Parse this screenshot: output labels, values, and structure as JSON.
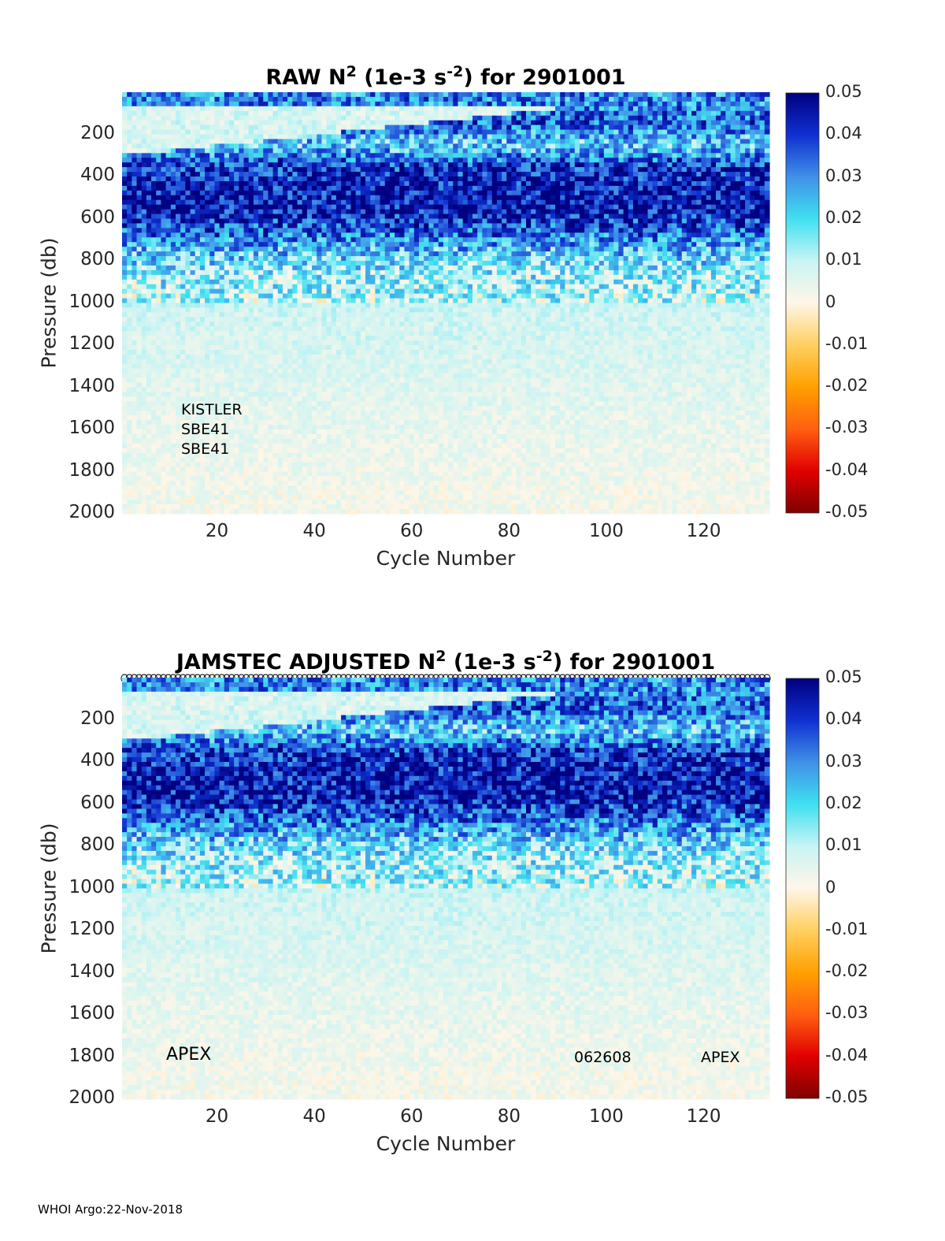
{
  "panels": [
    {
      "id": "raw",
      "title_parts": [
        "RAW N",
        "2",
        " (1e-3 s",
        "-2",
        ") for 2901001"
      ],
      "annotations": [
        "KISTLER",
        "SBE41",
        "SBE41"
      ],
      "bottom_annotations": [],
      "show_profile_markers": false
    },
    {
      "id": "adjusted",
      "title_parts": [
        "JAMSTEC  ADJUSTED N",
        "2",
        " (1e-3 s",
        "-2",
        ") for 2901001"
      ],
      "annotations": [],
      "bottom_annotations": [
        "APEX",
        "062608",
        "APEX"
      ],
      "show_profile_markers": true
    }
  ],
  "footer": "WHOI Argo:22-Nov-2018",
  "chart_data": [
    {
      "type": "heatmap",
      "title": "RAW N2 (1e-3 s-2) for 2901001",
      "xlabel": "Cycle Number",
      "ylabel": "Pressure (db)",
      "xlim": [
        1,
        133
      ],
      "ylim": [
        0,
        2000
      ],
      "y_reversed": true,
      "xticks": [
        20,
        40,
        60,
        80,
        100,
        120
      ],
      "yticks": [
        200,
        400,
        600,
        800,
        1000,
        1200,
        1400,
        1600,
        1800,
        2000
      ],
      "colorbar": {
        "min": -0.05,
        "max": 0.05,
        "ticks": [
          "0.05",
          "0.04",
          "0.03",
          "0.02",
          "0.01",
          "0",
          "-0.01",
          "-0.02",
          "-0.03",
          "-0.04",
          "-0.05"
        ],
        "colors": [
          "#800000",
          "#e00000",
          "#ff6010",
          "#ffa000",
          "#ffd060",
          "#fff6e8",
          "#c8f4f4",
          "#40e0f0",
          "#4090e8",
          "#1030d0",
          "#000080"
        ]
      },
      "profile": [
        {
          "p": 50,
          "v": 0.03
        },
        {
          "p": 150,
          "v": 0.035
        },
        {
          "p": 250,
          "v": 0.02
        },
        {
          "p": 350,
          "v": 0.04
        },
        {
          "p": 450,
          "v": 0.044
        },
        {
          "p": 550,
          "v": 0.045
        },
        {
          "p": 650,
          "v": 0.036
        },
        {
          "p": 750,
          "v": 0.024
        },
        {
          "p": 850,
          "v": 0.014
        },
        {
          "p": 950,
          "v": 0.012
        },
        {
          "p": 1050,
          "v": 0.008
        },
        {
          "p": 1250,
          "v": 0.007
        },
        {
          "p": 1500,
          "v": 0.005
        },
        {
          "p": 1800,
          "v": 0.003
        },
        {
          "p": 2000,
          "v": 0.002
        }
      ]
    },
    {
      "type": "heatmap",
      "title": "JAMSTEC  ADJUSTED N2 (1e-3 s-2) for 2901001",
      "xlabel": "Cycle Number",
      "ylabel": "Pressure (db)",
      "xlim": [
        1,
        133
      ],
      "ylim": [
        0,
        2000
      ],
      "y_reversed": true,
      "xticks": [
        20,
        40,
        60,
        80,
        100,
        120
      ],
      "yticks": [
        200,
        400,
        600,
        800,
        1000,
        1200,
        1400,
        1600,
        1800,
        2000
      ],
      "colorbar": {
        "min": -0.05,
        "max": 0.05,
        "ticks": [
          "0.05",
          "0.04",
          "0.03",
          "0.02",
          "0.01",
          "0",
          "-0.01",
          "-0.02",
          "-0.03",
          "-0.04",
          "-0.05"
        ],
        "colors": [
          "#800000",
          "#e00000",
          "#ff6010",
          "#ffa000",
          "#ffd060",
          "#fff6e8",
          "#c8f4f4",
          "#40e0f0",
          "#4090e8",
          "#1030d0",
          "#000080"
        ]
      },
      "profile": [
        {
          "p": 50,
          "v": 0.03
        },
        {
          "p": 150,
          "v": 0.035
        },
        {
          "p": 250,
          "v": 0.02
        },
        {
          "p": 350,
          "v": 0.04
        },
        {
          "p": 450,
          "v": 0.044
        },
        {
          "p": 550,
          "v": 0.045
        },
        {
          "p": 650,
          "v": 0.036
        },
        {
          "p": 750,
          "v": 0.024
        },
        {
          "p": 850,
          "v": 0.014
        },
        {
          "p": 950,
          "v": 0.012
        },
        {
          "p": 1050,
          "v": 0.008
        },
        {
          "p": 1250,
          "v": 0.007
        },
        {
          "p": 1500,
          "v": 0.005
        },
        {
          "p": 1800,
          "v": 0.003
        },
        {
          "p": 2000,
          "v": 0.002
        }
      ]
    }
  ]
}
